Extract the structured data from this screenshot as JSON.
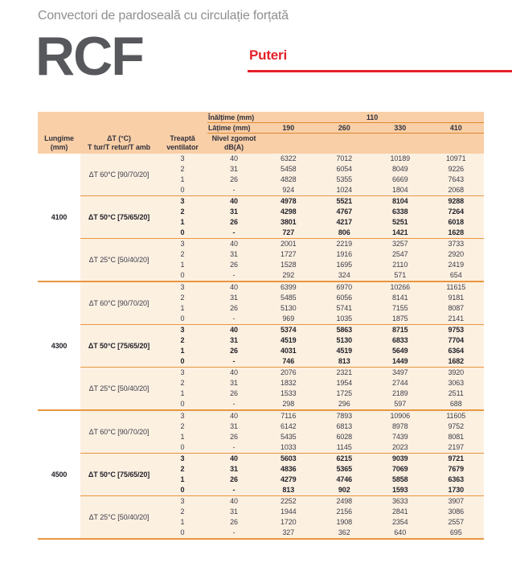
{
  "page": {
    "subtitle": "Convectori de pardoseală cu circulație forțată",
    "product": "RCF",
    "section_heading": "Puteri"
  },
  "colors": {
    "accent_red": "#E4202A",
    "header_band": "#F9CFA7",
    "body_bg": "#FCF0E1",
    "line_orange": "#E9963F",
    "text_dark": "#3D3D49"
  },
  "table": {
    "height_label": "Înălțime (mm)",
    "height_value": "110",
    "width_label": "Lățime (mm)",
    "width_values": [
      "190",
      "260",
      "330",
      "410"
    ],
    "headers": {
      "length_line1": "Lungime",
      "length_line2": "(mm)",
      "dt_line1": "ΔT (°C)",
      "dt_line2": "T tur/T retur/T amb",
      "step_line1": "Treaptă",
      "step_line2": "ventilator",
      "noise_line1": "Nivel zgomot",
      "noise_line2": "dB(A)"
    },
    "sections": [
      {
        "length": "4100",
        "groups": [
          {
            "dt": "ΔT 60°C [90/70/20]",
            "bold": false,
            "rows": [
              {
                "step": "3",
                "noise": "40",
                "values": [
                  "6322",
                  "7012",
                  "10189",
                  "10971"
                ]
              },
              {
                "step": "2",
                "noise": "31",
                "values": [
                  "5458",
                  "6054",
                  "8049",
                  "9226"
                ]
              },
              {
                "step": "1",
                "noise": "26",
                "values": [
                  "4828",
                  "5355",
                  "6669",
                  "7643"
                ]
              },
              {
                "step": "0",
                "noise": "-",
                "values": [
                  "924",
                  "1024",
                  "1804",
                  "2068"
                ]
              }
            ]
          },
          {
            "dt": "ΔT 50°C [75/65/20]",
            "bold": true,
            "rows": [
              {
                "step": "3",
                "noise": "40",
                "values": [
                  "4978",
                  "5521",
                  "8104",
                  "9288"
                ]
              },
              {
                "step": "2",
                "noise": "31",
                "values": [
                  "4298",
                  "4767",
                  "6338",
                  "7264"
                ]
              },
              {
                "step": "1",
                "noise": "26",
                "values": [
                  "3801",
                  "4217",
                  "5251",
                  "6018"
                ]
              },
              {
                "step": "0",
                "noise": "-",
                "values": [
                  "727",
                  "806",
                  "1421",
                  "1628"
                ]
              }
            ]
          },
          {
            "dt": "ΔT 25°C [50/40/20]",
            "bold": false,
            "rows": [
              {
                "step": "3",
                "noise": "40",
                "values": [
                  "2001",
                  "2219",
                  "3257",
                  "3733"
                ]
              },
              {
                "step": "2",
                "noise": "31",
                "values": [
                  "1727",
                  "1916",
                  "2547",
                  "2920"
                ]
              },
              {
                "step": "1",
                "noise": "26",
                "values": [
                  "1528",
                  "1695",
                  "2110",
                  "2419"
                ]
              },
              {
                "step": "0",
                "noise": "-",
                "values": [
                  "292",
                  "324",
                  "571",
                  "654"
                ]
              }
            ]
          }
        ]
      },
      {
        "length": "4300",
        "groups": [
          {
            "dt": "ΔT 60°C [90/70/20]",
            "bold": false,
            "rows": [
              {
                "step": "3",
                "noise": "40",
                "values": [
                  "6399",
                  "6970",
                  "10266",
                  "11615"
                ]
              },
              {
                "step": "2",
                "noise": "31",
                "values": [
                  "5485",
                  "6056",
                  "8141",
                  "9181"
                ]
              },
              {
                "step": "1",
                "noise": "26",
                "values": [
                  "5130",
                  "5741",
                  "7155",
                  "8087"
                ]
              },
              {
                "step": "0",
                "noise": "-",
                "values": [
                  "969",
                  "1035",
                  "1875",
                  "2141"
                ]
              }
            ]
          },
          {
            "dt": "ΔT 50°C [75/65/20]",
            "bold": true,
            "rows": [
              {
                "step": "3",
                "noise": "40",
                "values": [
                  "5374",
                  "5863",
                  "8715",
                  "9753"
                ]
              },
              {
                "step": "2",
                "noise": "31",
                "values": [
                  "4519",
                  "5130",
                  "6833",
                  "7704"
                ]
              },
              {
                "step": "1",
                "noise": "26",
                "values": [
                  "4031",
                  "4519",
                  "5649",
                  "6364"
                ]
              },
              {
                "step": "0",
                "noise": "-",
                "values": [
                  "746",
                  "813",
                  "1449",
                  "1682"
                ]
              }
            ]
          },
          {
            "dt": "ΔT 25°C [50/40/20]",
            "bold": false,
            "rows": [
              {
                "step": "3",
                "noise": "40",
                "values": [
                  "2076",
                  "2321",
                  "3497",
                  "3920"
                ]
              },
              {
                "step": "2",
                "noise": "31",
                "values": [
                  "1832",
                  "1954",
                  "2744",
                  "3063"
                ]
              },
              {
                "step": "1",
                "noise": "26",
                "values": [
                  "1533",
                  "1725",
                  "2189",
                  "2511"
                ]
              },
              {
                "step": "0",
                "noise": "-",
                "values": [
                  "298",
                  "296",
                  "597",
                  "688"
                ]
              }
            ]
          }
        ]
      },
      {
        "length": "4500",
        "groups": [
          {
            "dt": "ΔT 60°C [90/70/20]",
            "bold": false,
            "rows": [
              {
                "step": "3",
                "noise": "40",
                "values": [
                  "7116",
                  "7893",
                  "10906",
                  "11605"
                ]
              },
              {
                "step": "2",
                "noise": "31",
                "values": [
                  "6142",
                  "6813",
                  "8978",
                  "9752"
                ]
              },
              {
                "step": "1",
                "noise": "26",
                "values": [
                  "5435",
                  "6028",
                  "7439",
                  "8081"
                ]
              },
              {
                "step": "0",
                "noise": "-",
                "values": [
                  "1033",
                  "1145",
                  "2023",
                  "2197"
                ]
              }
            ]
          },
          {
            "dt": "ΔT 50°C [75/65/20]",
            "bold": true,
            "rows": [
              {
                "step": "3",
                "noise": "40",
                "values": [
                  "5603",
                  "6215",
                  "9039",
                  "9721"
                ]
              },
              {
                "step": "2",
                "noise": "31",
                "values": [
                  "4836",
                  "5365",
                  "7069",
                  "7679"
                ]
              },
              {
                "step": "1",
                "noise": "26",
                "values": [
                  "4279",
                  "4746",
                  "5858",
                  "6363"
                ]
              },
              {
                "step": "0",
                "noise": "-",
                "values": [
                  "813",
                  "902",
                  "1593",
                  "1730"
                ]
              }
            ]
          },
          {
            "dt": "ΔT 25°C [50/40/20]",
            "bold": false,
            "rows": [
              {
                "step": "3",
                "noise": "40",
                "values": [
                  "2252",
                  "2498",
                  "3633",
                  "3907"
                ]
              },
              {
                "step": "2",
                "noise": "31",
                "values": [
                  "1944",
                  "2156",
                  "2841",
                  "3086"
                ]
              },
              {
                "step": "1",
                "noise": "26",
                "values": [
                  "1720",
                  "1908",
                  "2354",
                  "2557"
                ]
              },
              {
                "step": "0",
                "noise": "-",
                "values": [
                  "327",
                  "362",
                  "640",
                  "695"
                ]
              }
            ]
          }
        ]
      }
    ]
  }
}
